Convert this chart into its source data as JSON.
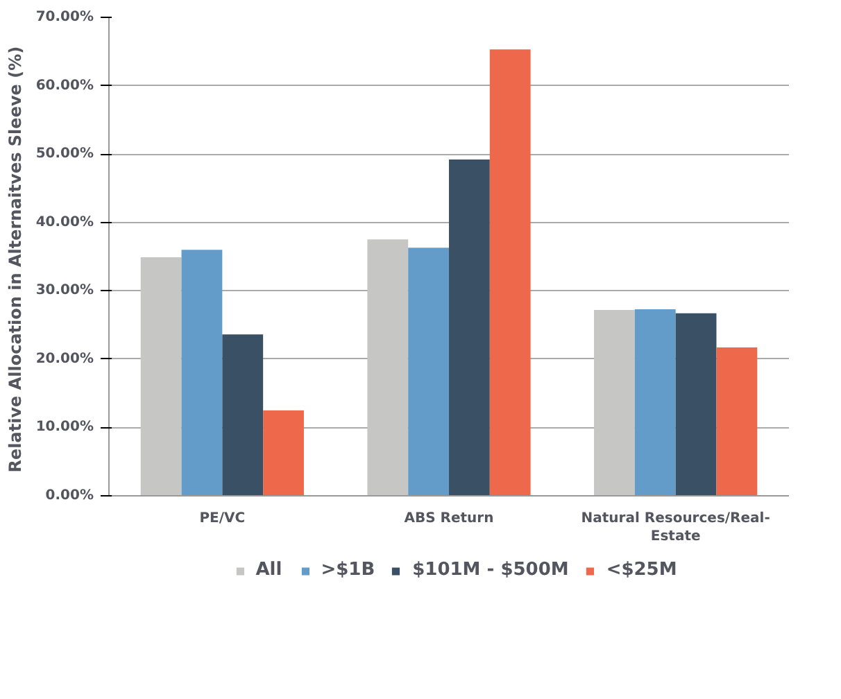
{
  "chart_data": {
    "type": "bar",
    "ylabel": "Relative Allocation in Alternaitves  Sleeve (%)",
    "categories": [
      "PE/VC",
      "ABS Return",
      "Natural Resources/Real-Estate"
    ],
    "series": [
      {
        "name": "All",
        "color": "#c6c6c4",
        "values": [
          34.9,
          37.5,
          27.2
        ]
      },
      {
        "name": ">$1B",
        "color": "#639cc9",
        "values": [
          36.0,
          36.3,
          27.3
        ]
      },
      {
        "name": "$101M - $500M",
        "color": "#3a5064",
        "values": [
          23.6,
          49.2,
          26.7
        ]
      },
      {
        "name": "<$25M",
        "color": "#ee694c",
        "values": [
          12.5,
          65.3,
          21.7
        ]
      }
    ],
    "ylim": [
      0,
      70
    ],
    "yticks": [
      {
        "value": 0,
        "label": "0.00%"
      },
      {
        "value": 10,
        "label": "10.00%"
      },
      {
        "value": 20,
        "label": "20.00%"
      },
      {
        "value": 30,
        "label": "30.00%"
      },
      {
        "value": 40,
        "label": "40.00%"
      },
      {
        "value": 50,
        "label": "50.00%"
      },
      {
        "value": 60,
        "label": "60.00%"
      },
      {
        "value": 70,
        "label": "70.00%"
      }
    ],
    "grid": "y",
    "legend": "bottom"
  }
}
